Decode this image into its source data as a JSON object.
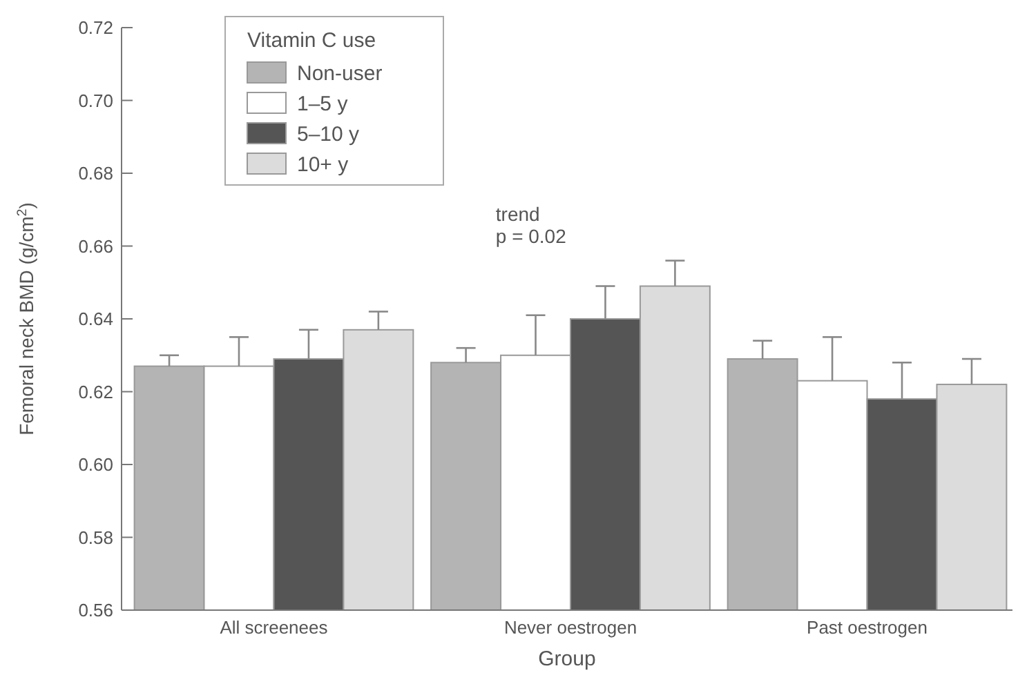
{
  "chart_data": {
    "type": "bar",
    "xlabel": "Group",
    "ylabel": "Femoral neck BMD (g/cm$^{2}$)",
    "legend_title": "Vitamin C use",
    "categories": [
      "All screenees",
      "Never oestrogen",
      "Past oestrogen"
    ],
    "series": [
      {
        "name": "Non-user",
        "color": "#b4b4b4",
        "values": [
          0.627,
          0.628,
          0.629
        ],
        "errors": [
          [
            0.627,
            0.63
          ],
          [
            0.628,
            0.632
          ],
          [
            0.629,
            0.634
          ]
        ]
      },
      {
        "name": "1–5 y",
        "color": "#ffffff",
        "values": [
          0.627,
          0.63,
          0.623
        ],
        "errors": [
          [
            0.627,
            0.635
          ],
          [
            0.63,
            0.641
          ],
          [
            0.623,
            0.635
          ]
        ]
      },
      {
        "name": "5–10 y",
        "color": "#555555",
        "values": [
          0.629,
          0.64,
          0.618
        ],
        "errors": [
          [
            0.629,
            0.637
          ],
          [
            0.64,
            0.649
          ],
          [
            0.618,
            0.628
          ]
        ]
      },
      {
        "name": "10+ y",
        "color": "#dcdcdc",
        "values": [
          0.637,
          0.649,
          0.622
        ],
        "errors": [
          [
            0.637,
            0.642
          ],
          [
            0.649,
            0.656
          ],
          [
            0.622,
            0.629
          ]
        ]
      }
    ],
    "ylim": [
      0.56,
      0.72
    ],
    "yticks": [
      0.56,
      0.58,
      {
        "value": 0.6,
        "label": "0.60"
      },
      0.62,
      0.64,
      0.66,
      0.68,
      {
        "value": 0.7,
        "label": "0.70"
      },
      0.72
    ],
    "annotations": [
      "trend\np = 0.02"
    ],
    "legend": "top left",
    "grid": false
  }
}
